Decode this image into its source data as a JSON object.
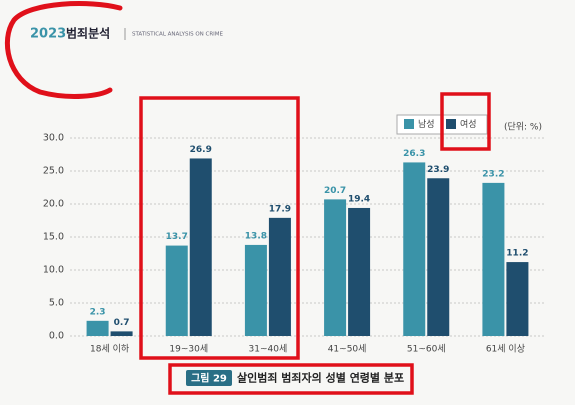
{
  "header": {
    "year": "2023",
    "title": "범죄분석",
    "subtitle": "STATISTICAL ANALYSIS ON CRIME"
  },
  "chart_data": {
    "type": "bar",
    "categories": [
      "18세 이하",
      "19~30세",
      "31~40세",
      "41~50세",
      "51~60세",
      "61세 이상"
    ],
    "series": [
      {
        "name": "남성",
        "color": "#3a93a8",
        "values": [
          2.3,
          13.7,
          13.8,
          20.7,
          26.3,
          23.2
        ]
      },
      {
        "name": "여성",
        "color": "#1f4e6e",
        "values": [
          0.7,
          26.9,
          17.9,
          19.4,
          23.9,
          11.2
        ]
      }
    ],
    "unit": "(단위: %)",
    "ylim": [
      0,
      30
    ],
    "yticks": [
      {
        "value": 0,
        "label": "0.0"
      },
      {
        "value": 5,
        "label": "5.0"
      },
      {
        "value": 10,
        "label": "10.0"
      },
      {
        "value": 15,
        "label": "15.0"
      },
      {
        "value": 20,
        "label": "20.0"
      },
      {
        "value": 25,
        "label": "25.0"
      },
      {
        "value": 30,
        "label": "30.0"
      }
    ],
    "grid": true,
    "legend": "top-right",
    "caption": {
      "label": "그림 29",
      "text": "살인범죄 범죄자의 성별 연령별 분포"
    }
  }
}
